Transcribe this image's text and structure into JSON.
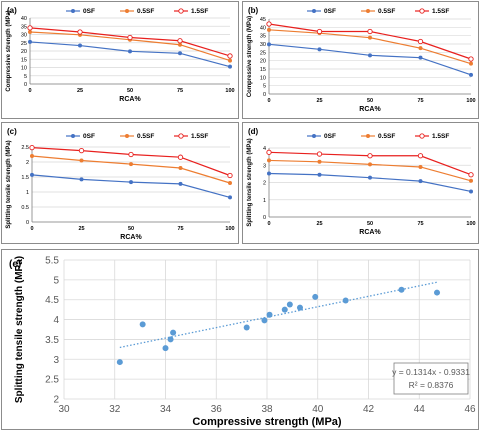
{
  "chart_data": [
    {
      "panel": "(a)",
      "type": "line",
      "categories": [
        "0",
        "25",
        "50",
        "75",
        "100"
      ],
      "xlabel": "RCA%",
      "ylabel": "Compressive strength (MPa)",
      "ylim": [
        0,
        40
      ],
      "yticks": [
        "0",
        "5",
        "10",
        "15",
        "20",
        "25",
        "30",
        "35",
        "40"
      ],
      "grid": true,
      "legend": "top",
      "series": [
        {
          "name": "0SF",
          "color": "#4472c4",
          "marker": "filled-circle",
          "values": [
            25.5,
            23.3,
            19.8,
            18.6,
            10.5
          ]
        },
        {
          "name": "0.5SF",
          "color": "#ed7d31",
          "marker": "filled-circle",
          "values": [
            31.5,
            29.8,
            26.8,
            23.8,
            14.2
          ]
        },
        {
          "name": "1.5SF",
          "color": "#e8201e",
          "marker": "open-circle",
          "values": [
            34.0,
            31.5,
            28.2,
            26.2,
            17.0
          ]
        }
      ]
    },
    {
      "panel": "(b)",
      "type": "line",
      "categories": [
        "0",
        "25",
        "50",
        "75",
        "100"
      ],
      "xlabel": "RCA%",
      "ylabel": "Compressive strength (MPa)",
      "ylim": [
        0,
        45
      ],
      "yticks": [
        "0",
        "5",
        "10",
        "15",
        "20",
        "25",
        "30",
        "35",
        "40",
        "45"
      ],
      "grid": true,
      "legend": "top",
      "series": [
        {
          "name": "0SF",
          "color": "#4472c4",
          "marker": "filled-circle",
          "values": [
            29.8,
            26.8,
            23.2,
            21.8,
            11.5
          ]
        },
        {
          "name": "0.5SF",
          "color": "#ed7d31",
          "marker": "filled-circle",
          "values": [
            38.5,
            36.5,
            33.8,
            27.5,
            18.2
          ]
        },
        {
          "name": "1.5SF",
          "color": "#e8201e",
          "marker": "open-circle",
          "values": [
            42.0,
            37.5,
            37.5,
            31.5,
            21.0
          ]
        }
      ]
    },
    {
      "panel": "(c)",
      "type": "line",
      "categories": [
        "0",
        "25",
        "50",
        "75",
        "100"
      ],
      "xlabel": "RCA%",
      "ylabel": "Splitting tensile strength (MPa)",
      "ylim": [
        0,
        2.5
      ],
      "yticks": [
        "0",
        "0.5",
        "1",
        "1.5",
        "2",
        "2.5"
      ],
      "grid": true,
      "legend": "top",
      "series": [
        {
          "name": "0SF",
          "color": "#4472c4",
          "marker": "filled-circle",
          "values": [
            1.57,
            1.42,
            1.33,
            1.27,
            0.82
          ]
        },
        {
          "name": "0.5SF",
          "color": "#ed7d31",
          "marker": "filled-circle",
          "values": [
            2.2,
            2.05,
            1.93,
            1.8,
            1.3
          ]
        },
        {
          "name": "1.5SF",
          "color": "#e8201e",
          "marker": "open-circle",
          "values": [
            2.48,
            2.38,
            2.25,
            2.16,
            1.55
          ]
        }
      ]
    },
    {
      "panel": "(d)",
      "type": "line",
      "categories": [
        "0",
        "25",
        "50",
        "75",
        "100"
      ],
      "xlabel": "RCA%",
      "ylabel": "Splitting tensile strength (MPa)",
      "ylim": [
        0,
        4
      ],
      "yticks": [
        "0",
        "1",
        "2",
        "3",
        "4"
      ],
      "grid": true,
      "legend": "top",
      "series": [
        {
          "name": "0SF",
          "color": "#4472c4",
          "marker": "filled-circle",
          "values": [
            2.52,
            2.45,
            2.28,
            2.08,
            1.48
          ]
        },
        {
          "name": "0.5SF",
          "color": "#ed7d31",
          "marker": "filled-circle",
          "values": [
            3.28,
            3.2,
            3.05,
            2.9,
            2.1
          ]
        },
        {
          "name": "1.5SF",
          "color": "#e8201e",
          "marker": "open-circle",
          "values": [
            3.75,
            3.65,
            3.55,
            3.55,
            2.45
          ]
        }
      ]
    },
    {
      "panel": "(e)",
      "type": "scatter",
      "xlabel": "Compressive strength (MPa)",
      "ylabel": "Splitting tensile strength (MPa)",
      "xlim": [
        30,
        46
      ],
      "ylim": [
        2,
        5.5
      ],
      "xticks": [
        "30",
        "32",
        "34",
        "36",
        "38",
        "40",
        "42",
        "44",
        "46"
      ],
      "yticks": [
        "2",
        "2.5",
        "3",
        "3.5",
        "4",
        "4.5",
        "5",
        "5.5"
      ],
      "grid": true,
      "point_color": "#5b9bd5",
      "points": [
        [
          32.2,
          2.93
        ],
        [
          33.1,
          3.88
        ],
        [
          34.0,
          3.28
        ],
        [
          34.2,
          3.5
        ],
        [
          34.3,
          3.67
        ],
        [
          37.2,
          3.8
        ],
        [
          37.9,
          3.98
        ],
        [
          38.1,
          4.12
        ],
        [
          38.7,
          4.25
        ],
        [
          38.9,
          4.38
        ],
        [
          39.3,
          4.3
        ],
        [
          39.9,
          4.57
        ],
        [
          41.1,
          4.48
        ],
        [
          43.3,
          4.75
        ],
        [
          44.7,
          4.68
        ]
      ],
      "trendline": {
        "x": [
          32.2,
          44.7
        ],
        "equation": "y = 0.1314x - 0.9331",
        "r2": "R² = 0.8376"
      }
    }
  ]
}
